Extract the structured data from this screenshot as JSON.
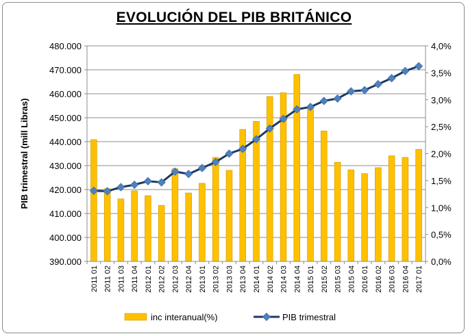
{
  "chart_data": {
    "type": "bar",
    "title": "EVOLUCIÓN DEL PIB BRITÁNICO",
    "ylabel": "PIB trimestral (mill Libras)",
    "y2label": "",
    "ylim": [
      390000,
      480000
    ],
    "y2lim": [
      0,
      4
    ],
    "y_ticks": [
      "390.000",
      "400.000",
      "410.000",
      "420.000",
      "430.000",
      "440.000",
      "450.000",
      "460.000",
      "470.000",
      "480.000"
    ],
    "y2_ticks": [
      "0,0%",
      "0,5%",
      "1,0%",
      "1,5%",
      "2,0%",
      "2,5%",
      "3,0%",
      "3,5%",
      "4,0%"
    ],
    "grid": true,
    "legend": "bottom",
    "categories": [
      "2011 01",
      "2011 02",
      "2011 03",
      "2011 04",
      "2012 01",
      "2012 02",
      "2012 03",
      "2012 04",
      "2013 01",
      "2013 02",
      "2013 03",
      "2013 04",
      "2014 01",
      "2014 02",
      "2014 03",
      "2014 04",
      "2015 01",
      "2015 02",
      "2015 03",
      "2015 04",
      "2016 01",
      "2016 02",
      "2016 03",
      "2016 04",
      "2017 01"
    ],
    "series": [
      {
        "name": "inc interanual(%)",
        "type": "bar",
        "axis": "right",
        "color": "#FFC000",
        "values": [
          2.26,
          1.35,
          1.16,
          1.31,
          1.22,
          1.04,
          1.72,
          1.27,
          1.45,
          1.93,
          1.69,
          2.45,
          2.6,
          3.06,
          3.13,
          3.47,
          2.87,
          2.42,
          1.84,
          1.7,
          1.63,
          1.74,
          1.96,
          1.93,
          2.08
        ]
      },
      {
        "name": "PIB trimestral",
        "type": "line",
        "axis": "left",
        "color": "#4F81BD",
        "line_color": "#1F3864",
        "values": [
          419500,
          419300,
          421000,
          422000,
          423500,
          423000,
          427500,
          426500,
          429000,
          431500,
          435000,
          437000,
          441000,
          445500,
          449500,
          453500,
          454500,
          457000,
          458000,
          461000,
          461500,
          464000,
          466500,
          469500,
          471500
        ]
      }
    ]
  }
}
